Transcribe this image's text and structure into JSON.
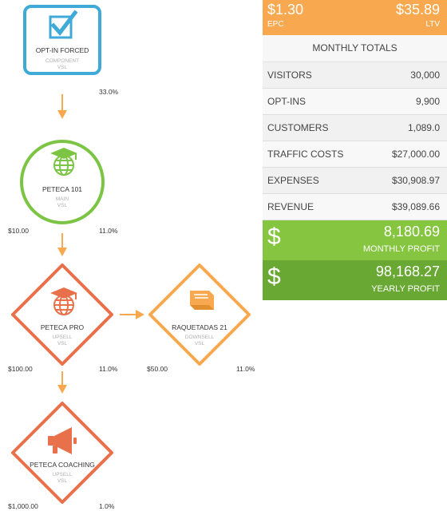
{
  "funnel": {
    "nodes": [
      {
        "title": "OPT-IN FORCED",
        "sub1": "COMPONENT",
        "sub2": "VSL",
        "price": "",
        "rate": "33.0%",
        "color": "#3fa9d8",
        "icon": "checkbox-icon"
      },
      {
        "title": "PETECA 101",
        "sub1": "MAIN",
        "sub2": "VSL",
        "price": "$10.00",
        "rate": "11.0%",
        "color": "#7cc444",
        "icon": "graduation-globe-icon"
      },
      {
        "title": "PETECA PRO",
        "sub1": "UPSELL",
        "sub2": "VSL",
        "price": "$100.00",
        "rate": "11.0%",
        "color": "#e8704a",
        "icon": "graduation-globe-icon"
      },
      {
        "title": "RAQUETADAS 21",
        "sub1": "DOWNSELL",
        "sub2": "VSL",
        "price": "$50.00",
        "rate": "11.0%",
        "color": "#f8a94f",
        "icon": "book-icon"
      },
      {
        "title": "PETECA COACHING",
        "sub1": "UPSELL",
        "sub2": "VSL",
        "price": "$1,000.00",
        "rate": "1.0%",
        "color": "#e8704a",
        "icon": "megaphone-icon"
      }
    ],
    "arrow_color": "#f8a94f"
  },
  "summary": {
    "epc_value": "$1.30",
    "epc_label": "EPC",
    "ltv_value": "$35.89",
    "ltv_label": "LTV",
    "monthly_totals_label": "MONTHLY TOTALS",
    "rows": [
      {
        "label": "VISITORS",
        "value": "30,000"
      },
      {
        "label": "OPT-INS",
        "value": "9,900"
      },
      {
        "label": "CUSTOMERS",
        "value": "1,089.0"
      },
      {
        "label": "TRAFFIC COSTS",
        "value": "$27,000.00"
      },
      {
        "label": "EXPENSES",
        "value": "$30,908.97"
      },
      {
        "label": "REVENUE",
        "value": "$39,089.66"
      }
    ],
    "monthly_profit": {
      "symbol": "$",
      "value": "8,180.69",
      "label": "MONTHLY PROFIT",
      "color": "#86c540"
    },
    "yearly_profit": {
      "symbol": "$",
      "value": "98,168.27",
      "label": "YEARLY PROFIT",
      "color": "#6aa834"
    }
  }
}
